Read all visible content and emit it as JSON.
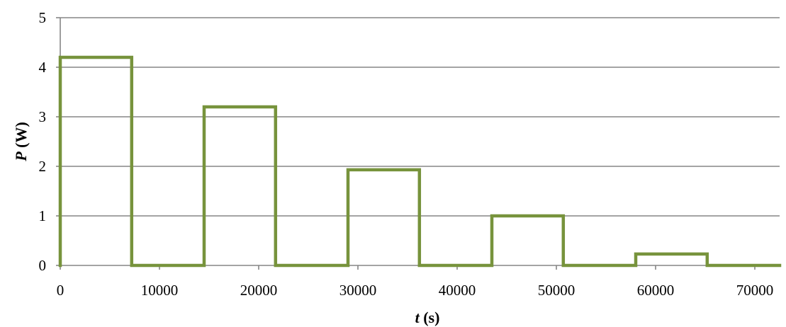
{
  "chart_data": {
    "type": "line",
    "title": "",
    "xlabel": {
      "var": "t",
      "unit": " (s)"
    },
    "ylabel": {
      "var": "P",
      "unit": " (W)"
    },
    "xlim": [
      0,
      72500
    ],
    "ylim": [
      0,
      5
    ],
    "x_ticks": [
      0,
      10000,
      20000,
      30000,
      40000,
      50000,
      60000,
      70000
    ],
    "y_ticks": [
      0,
      1,
      2,
      3,
      4,
      5
    ],
    "grid": {
      "horizontal": true,
      "vertical": false
    },
    "legend": "none",
    "series": [
      {
        "color": "#77933C",
        "x": [
          0,
          0,
          7200,
          7200,
          14500,
          14500,
          21700,
          21700,
          29000,
          29000,
          36200,
          36200,
          43500,
          43500,
          50700,
          50700,
          58000,
          58000,
          65200,
          65200,
          72500
        ],
        "y": [
          0,
          4.2,
          4.2,
          0,
          0,
          3.2,
          3.2,
          0,
          0,
          1.93,
          1.93,
          0,
          0,
          1.0,
          1.0,
          0,
          0,
          0.23,
          0.23,
          0,
          0
        ]
      }
    ]
  }
}
